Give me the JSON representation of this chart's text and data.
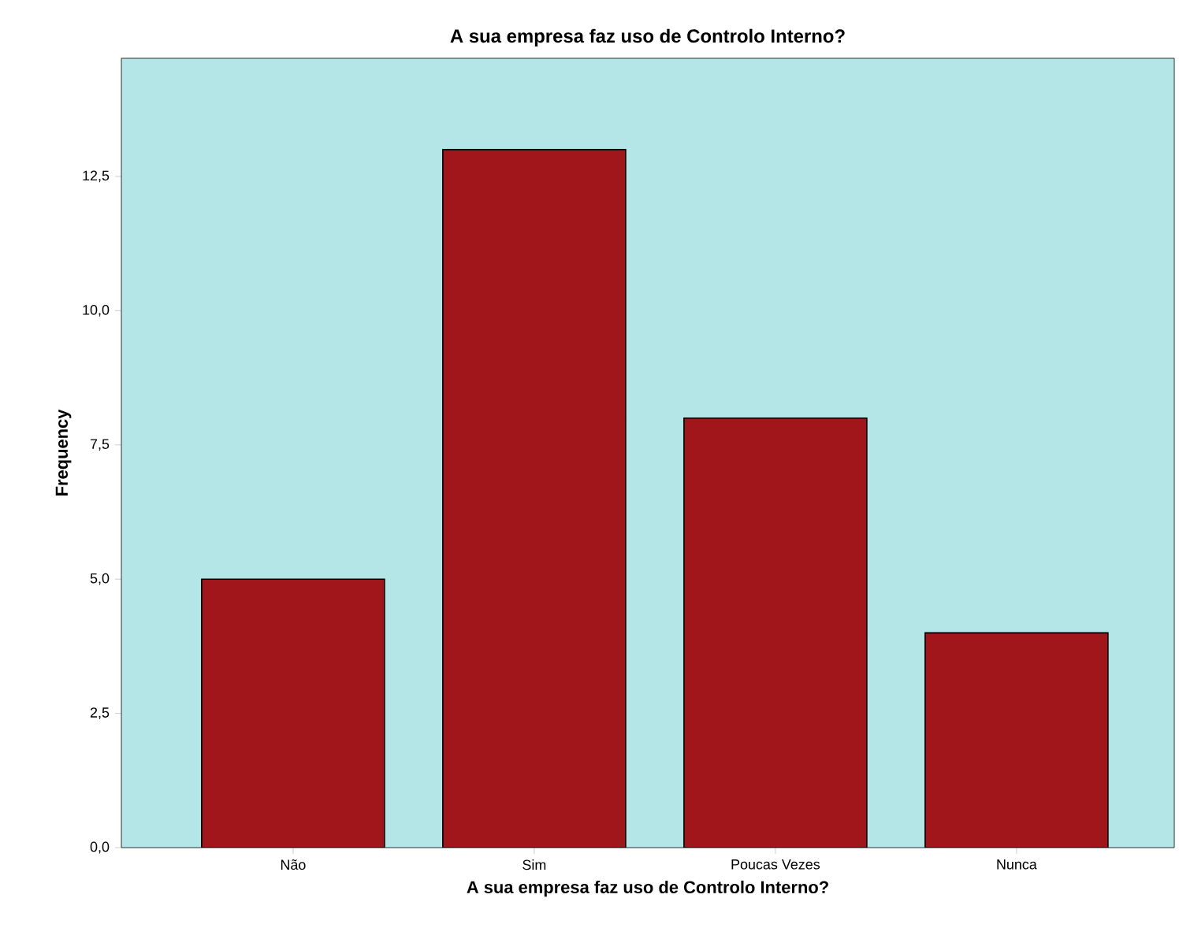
{
  "chart_data": {
    "type": "bar",
    "title": "A sua empresa faz uso de Controlo Interno?",
    "xlabel": "A sua empresa faz uso de Controlo Interno?",
    "ylabel": "Frequency",
    "categories": [
      "Não",
      "Sim",
      "Poucas Vezes",
      "Nunca"
    ],
    "values": [
      5,
      13,
      8,
      4
    ],
    "color": "#a0161a",
    "ylim": [
      0,
      14.7
    ],
    "yticks": [
      {
        "value": 0,
        "label": "0,0"
      },
      {
        "value": 2.5,
        "label": "2,5"
      },
      {
        "value": 5,
        "label": "5,0"
      },
      {
        "value": 7.5,
        "label": "7,5"
      },
      {
        "value": 10,
        "label": "10,0"
      },
      {
        "value": 12.5,
        "label": "12,5"
      }
    ],
    "grid": false
  }
}
